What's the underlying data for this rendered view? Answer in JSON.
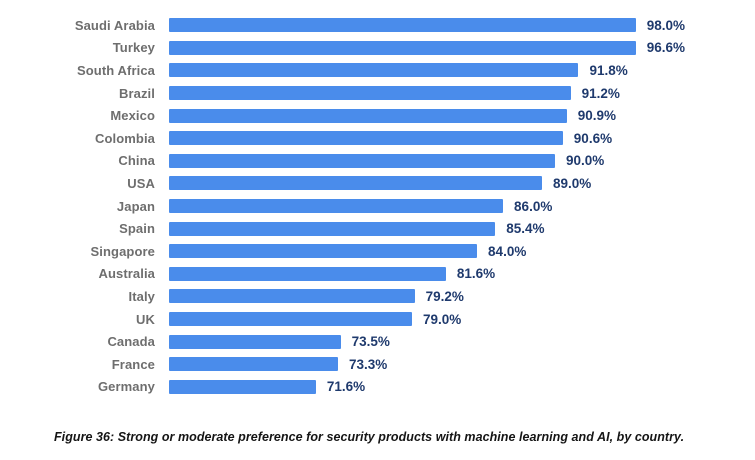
{
  "caption": "Figure 36: Strong or moderate preference for security products with machine learning and AI, by country.",
  "colors": {
    "bar": "#4a8ceb",
    "value_label": "#1f3a6d",
    "category_label": "#6e6e6e",
    "background": "#ffffff"
  },
  "chart_data": {
    "type": "bar",
    "orientation": "horizontal",
    "title": "",
    "xlabel": "",
    "ylabel": "",
    "categories": [
      "Saudi Arabia",
      "Turkey",
      "South Africa",
      "Brazil",
      "Mexico",
      "Colombia",
      "China",
      "USA",
      "Japan",
      "Spain",
      "Singapore",
      "Australia",
      "Italy",
      "UK",
      "Canada",
      "France",
      "Germany"
    ],
    "values": [
      98.0,
      96.6,
      91.8,
      91.2,
      90.9,
      90.6,
      90.0,
      89.0,
      86.0,
      85.4,
      84.0,
      81.6,
      79.2,
      79.0,
      73.5,
      73.3,
      71.6
    ],
    "value_labels": [
      "98.0%",
      "96.6%",
      "91.8%",
      "91.2%",
      "90.9%",
      "90.6%",
      "90.0%",
      "89.0%",
      "86.0%",
      "85.4%",
      "84.0%",
      "81.6%",
      "79.2%",
      "79.0%",
      "73.5%",
      "73.3%",
      "71.6%"
    ],
    "xlim": [
      60.3,
      100
    ],
    "grid": false,
    "legend": "none",
    "data_labels": "outside-end"
  }
}
